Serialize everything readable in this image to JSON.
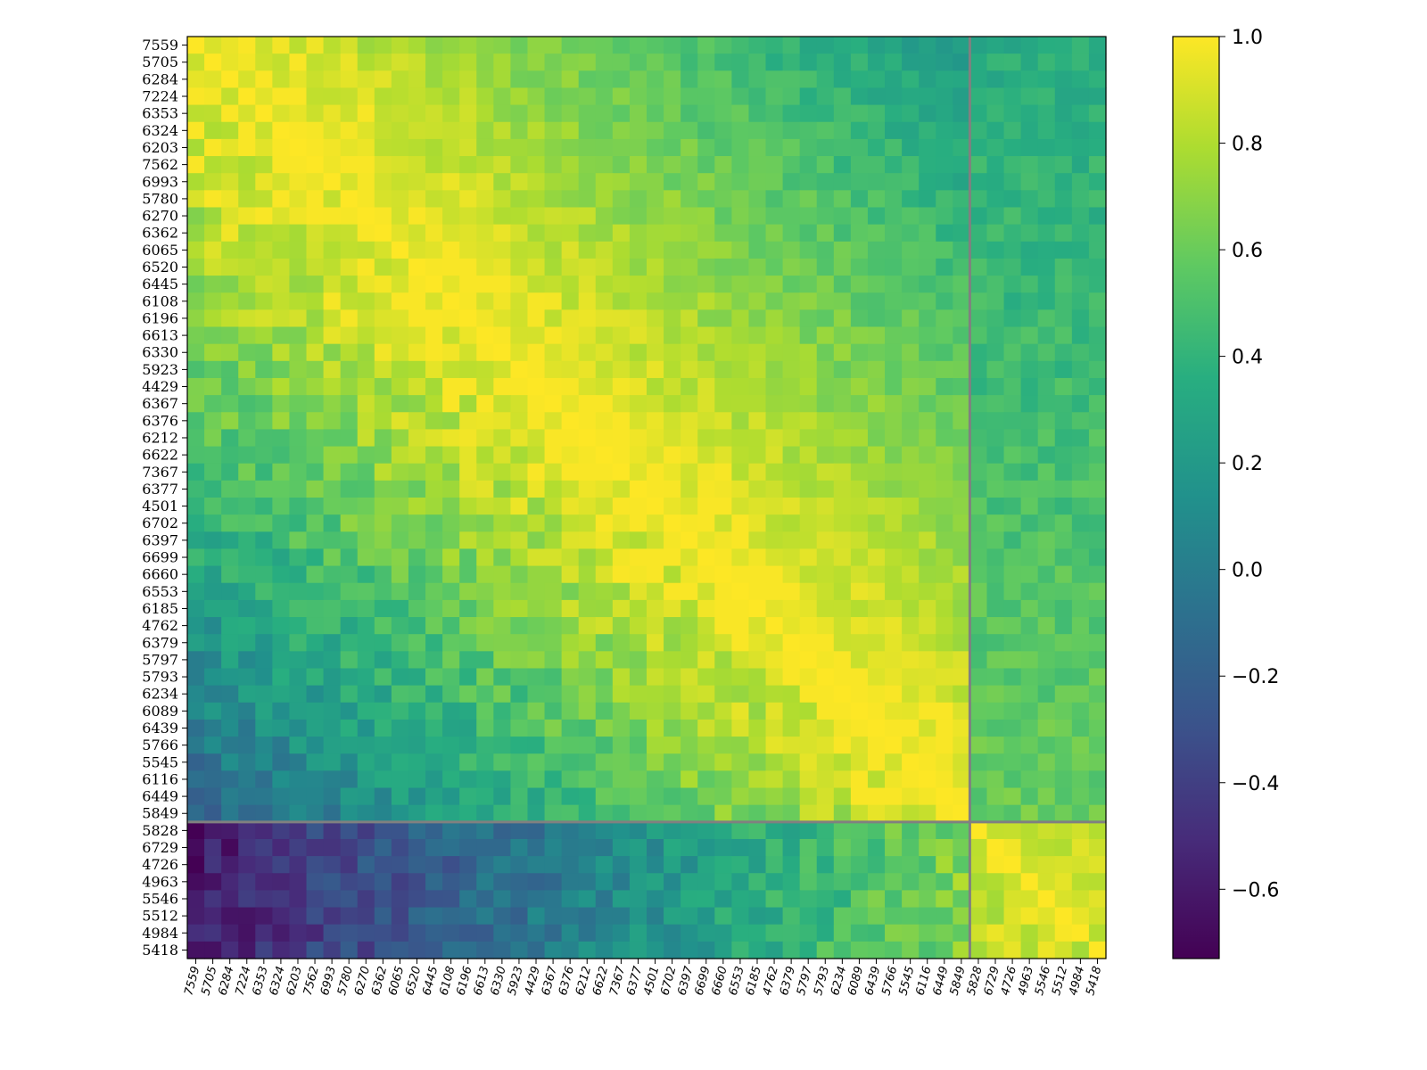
{
  "chart_data": {
    "type": "heatmap",
    "title": "",
    "xlabel": "",
    "ylabel": "",
    "labels": [
      "7559",
      "5705",
      "6284",
      "7224",
      "6353",
      "6324",
      "6203",
      "7562",
      "6993",
      "5780",
      "6270",
      "6362",
      "6065",
      "6520",
      "6445",
      "6108",
      "6196",
      "6613",
      "6330",
      "5923",
      "4429",
      "6367",
      "6376",
      "6212",
      "6622",
      "7367",
      "6377",
      "4501",
      "6702",
      "6397",
      "6699",
      "6660",
      "6553",
      "6185",
      "4762",
      "6379",
      "5797",
      "5793",
      "6234",
      "6089",
      "6439",
      "5766",
      "5545",
      "6116",
      "6449",
      "5849",
      "5828",
      "6729",
      "4726",
      "4963",
      "5546",
      "5512",
      "4984",
      "5418"
    ],
    "group_split_after": "5849",
    "colormap": "viridis",
    "colorbar": {
      "min": -0.73,
      "max": 1.0,
      "ticks": [
        1.0,
        0.8,
        0.6,
        0.4,
        0.2,
        0.0,
        -0.2,
        -0.4,
        -0.6
      ],
      "tick_labels": [
        "1.0",
        "0.8",
        "0.6",
        "0.4",
        "0.2",
        "0.0",
        "−0.2",
        "−0.4",
        "−0.6"
      ]
    },
    "divider_color": "#808080",
    "matrix_description_note": "",
    "anchors": {
      "group_a_upper": 0.82,
      "group_a_lower": 0.38,
      "group_b_within": 0.88,
      "cross_group_low": -0.6,
      "cross_group_high": 0.7,
      "noise": 0.09
    }
  }
}
